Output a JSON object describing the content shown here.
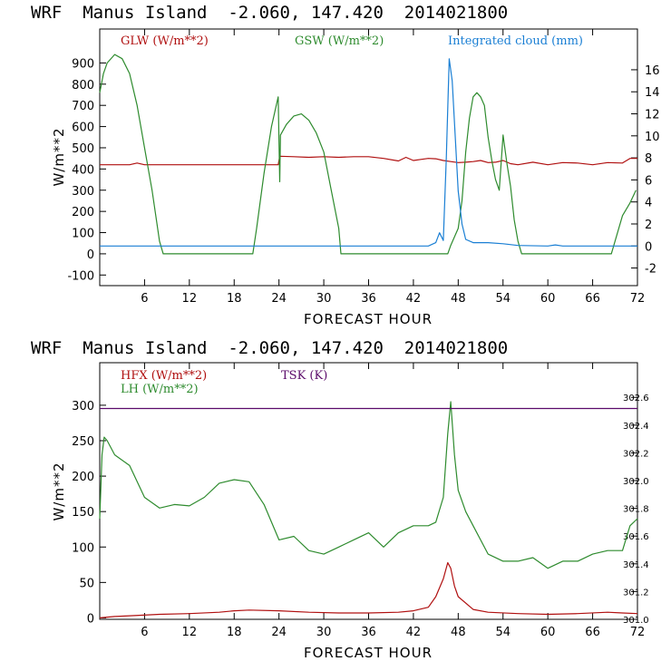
{
  "chart_data": [
    {
      "type": "line",
      "title": "WRF  Manus Island  -2.060, 147.420  2014021800",
      "xlabel": "FORECAST HOUR",
      "ylabel": "W/m**2",
      "xlim": [
        0,
        72
      ],
      "ylim": [
        -150,
        1060
      ],
      "x_ticks": [
        6,
        12,
        18,
        24,
        30,
        36,
        42,
        48,
        54,
        60,
        66,
        72
      ],
      "y_ticks": [
        -100,
        0,
        100,
        200,
        300,
        400,
        500,
        600,
        700,
        800,
        900
      ],
      "y2_label": "",
      "y2_ticks": [
        -2,
        0,
        2,
        4,
        6,
        8,
        10,
        12,
        14,
        16
      ],
      "y2lim": [
        -3.6,
        19.7
      ],
      "grid": false,
      "legend_position": "top",
      "series": [
        {
          "name": "GLW (W/m**2)",
          "color": "#b01010",
          "axis": "left",
          "x": [
            0,
            2,
            4,
            5,
            6,
            8,
            10,
            12,
            14,
            16,
            18,
            20,
            22,
            23.9,
            24.1,
            26,
            28,
            30,
            32,
            34,
            36,
            38,
            40,
            41,
            42,
            43,
            44,
            45,
            46,
            47,
            48,
            49,
            50,
            51,
            52,
            53,
            54,
            55,
            56,
            58,
            60,
            62,
            64,
            66,
            68,
            70,
            71,
            72
          ],
          "y": [
            420,
            420,
            420,
            428,
            420,
            420,
            420,
            420,
            420,
            420,
            420,
            420,
            420,
            420,
            460,
            458,
            455,
            458,
            455,
            458,
            458,
            450,
            438,
            455,
            440,
            445,
            450,
            448,
            440,
            435,
            430,
            432,
            435,
            440,
            430,
            432,
            440,
            425,
            420,
            432,
            420,
            430,
            428,
            420,
            430,
            428,
            450,
            450
          ]
        },
        {
          "name": "GSW (W/m**2)",
          "color": "#2e8b2e",
          "axis": "left",
          "x": [
            0,
            0.5,
            1,
            2,
            3,
            4,
            5,
            6,
            7,
            8,
            8.5,
            20.5,
            21,
            22,
            23,
            23.9,
            24.1,
            24.2,
            25,
            26,
            27,
            28,
            29,
            30,
            31,
            32,
            32.3,
            46.6,
            47,
            48,
            48.5,
            49,
            49.5,
            50,
            50.5,
            51,
            51.5,
            52,
            52.5,
            53,
            53.5,
            54,
            54.5,
            55,
            55.5,
            56,
            56.5,
            68.5,
            69,
            70,
            71,
            71.8
          ],
          "y": [
            760,
            850,
            900,
            940,
            920,
            850,
            700,
            500,
            300,
            60,
            0,
            0,
            120,
            380,
            600,
            740,
            340,
            560,
            610,
            650,
            660,
            630,
            570,
            480,
            300,
            120,
            0,
            0,
            40,
            120,
            250,
            480,
            640,
            740,
            760,
            740,
            700,
            550,
            440,
            350,
            300,
            560,
            430,
            320,
            160,
            60,
            0,
            0,
            60,
            180,
            240,
            300
          ]
        },
        {
          "name": "Integrated cloud (mm)",
          "color": "#1a7fd4",
          "axis": "right",
          "x": [
            0,
            44,
            45,
            45.5,
            46,
            46.4,
            46.8,
            47.2,
            47.6,
            48,
            48.5,
            49,
            50,
            52,
            54,
            56,
            60,
            61,
            62,
            72
          ],
          "y": [
            0,
            0,
            0.3,
            1.2,
            0.5,
            8,
            17,
            15,
            10,
            5,
            2,
            0.6,
            0.3,
            0.3,
            0.2,
            0.05,
            0,
            0.1,
            0,
            0
          ]
        }
      ]
    },
    {
      "type": "line",
      "title": "WRF  Manus Island  -2.060, 147.420  2014021800",
      "xlabel": "FORECAST HOUR",
      "ylabel": "W/m**2",
      "xlim": [
        0,
        72
      ],
      "ylim": [
        -2,
        360
      ],
      "x_ticks": [
        6,
        12,
        18,
        24,
        30,
        36,
        42,
        48,
        54,
        60,
        66,
        72
      ],
      "y_ticks": [
        0,
        50,
        100,
        150,
        200,
        250,
        300
      ],
      "y2_ticks": [
        "301.0",
        "301.2",
        "301.4",
        "301.6",
        "301.8",
        "302.0",
        "302.2",
        "302.4",
        "302.6"
      ],
      "y2lim": [
        301.0,
        302.85
      ],
      "grid": false,
      "legend_position": "top-left",
      "series": [
        {
          "name": "HFX (W/m**2)",
          "color": "#b01010",
          "axis": "left",
          "x": [
            0,
            2,
            4,
            8,
            12,
            16,
            18,
            20,
            24,
            28,
            32,
            36,
            40,
            42,
            44,
            45,
            46,
            46.6,
            47,
            47.5,
            48,
            50,
            52,
            56,
            60,
            64,
            68,
            70,
            72
          ],
          "y": [
            0,
            2,
            3,
            5,
            6,
            8,
            10,
            11,
            10,
            8,
            7,
            7,
            8,
            10,
            15,
            30,
            55,
            78,
            70,
            45,
            30,
            12,
            8,
            6,
            5,
            6,
            8,
            7,
            6
          ]
        },
        {
          "name": "LH (W/m**2)",
          "color": "#2e8b2e",
          "axis": "left",
          "x": [
            0,
            0.3,
            0.6,
            1,
            2,
            4,
            6,
            8,
            10,
            12,
            14,
            16,
            18,
            20,
            22,
            24,
            26,
            28,
            30,
            32,
            34,
            36,
            38,
            40,
            42,
            44,
            45,
            46,
            46.6,
            47,
            47.5,
            48,
            49,
            50,
            52,
            54,
            56,
            58,
            60,
            62,
            64,
            66,
            68,
            70,
            71,
            72
          ],
          "y": [
            140,
            230,
            255,
            250,
            230,
            215,
            170,
            155,
            160,
            158,
            170,
            190,
            195,
            192,
            160,
            110,
            115,
            95,
            90,
            100,
            110,
            120,
            100,
            120,
            130,
            130,
            135,
            170,
            260,
            305,
            230,
            180,
            150,
            130,
            90,
            80,
            80,
            85,
            70,
            80,
            80,
            90,
            95,
            95,
            130,
            140
          ]
        },
        {
          "name": "TSK (K)",
          "color": "#5a0a6a",
          "axis": "right",
          "x": [
            0,
            72
          ],
          "y": [
            302.52,
            302.52
          ]
        }
      ]
    }
  ]
}
